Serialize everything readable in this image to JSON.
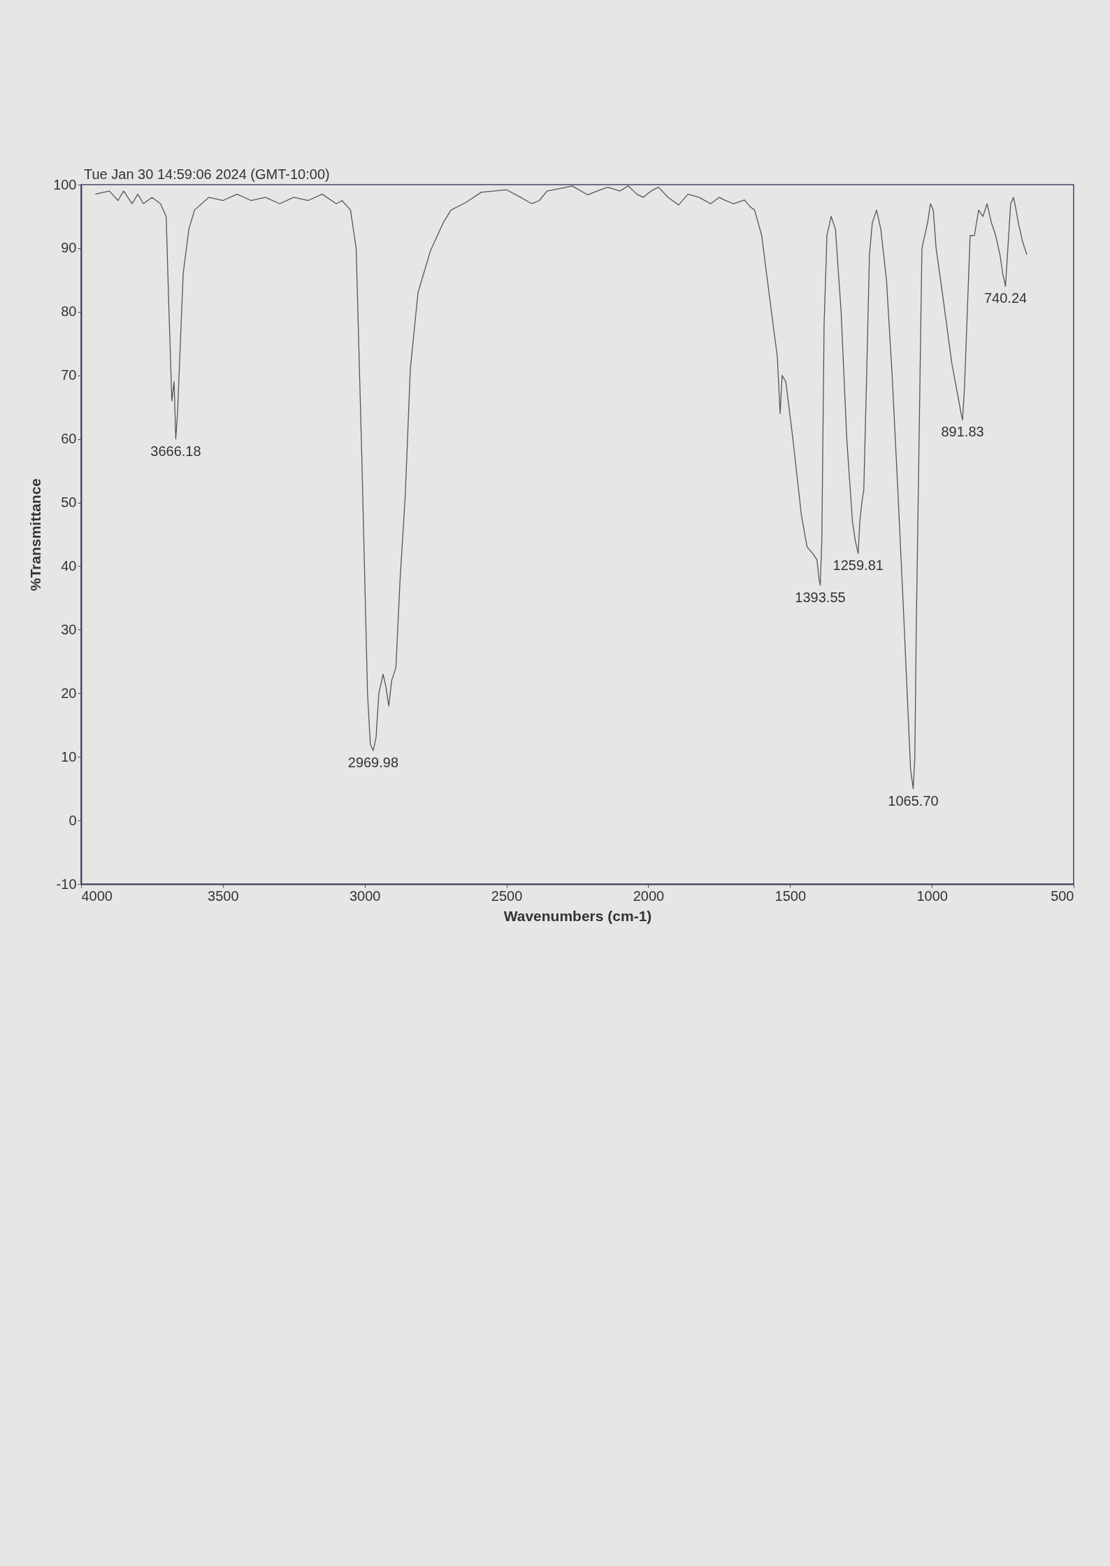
{
  "chart_data": {
    "type": "line",
    "xlabel": "Wavenumbers (cm-1)",
    "ylabel": "%Transmittance",
    "color": "#555555",
    "x": [
      3950,
      3900,
      3870,
      3850,
      3820,
      3800,
      3780,
      3750,
      3720,
      3700,
      3690,
      3680,
      3672,
      3666.18,
      3660,
      3650,
      3640,
      3620,
      3600,
      3550,
      3500,
      3450,
      3400,
      3350,
      3300,
      3250,
      3200,
      3150,
      3100,
      3080,
      3050,
      3030,
      3010,
      2990,
      2980,
      2969.98,
      2960,
      2950,
      2935,
      2925,
      2915,
      2905,
      2890,
      2875,
      2857,
      2839,
      2812,
      2768,
      2723,
      2696,
      2643,
      2589,
      2500,
      2450,
      2411,
      2384,
      2357,
      2300,
      2268,
      2214,
      2180,
      2143,
      2100,
      2071,
      2040,
      2018,
      1990,
      1964,
      1930,
      1893,
      1860,
      1821,
      1780,
      1750,
      1732,
      1700,
      1661,
      1640,
      1625,
      1600,
      1580,
      1560,
      1545,
      1535,
      1528,
      1515,
      1490,
      1460,
      1440,
      1420,
      1405,
      1398,
      1393.55,
      1388,
      1380,
      1370,
      1355,
      1340,
      1320,
      1300,
      1280,
      1270,
      1265,
      1259.81,
      1254,
      1247,
      1240,
      1230,
      1220,
      1210,
      1195,
      1180,
      1160,
      1140,
      1120,
      1100,
      1085,
      1075,
      1065.7,
      1060,
      1055,
      1045,
      1035,
      1025,
      1015,
      1005,
      995,
      985,
      960,
      930,
      905,
      897,
      891.83,
      885,
      875,
      865,
      850,
      835,
      820,
      805,
      790,
      775,
      760,
      750,
      740.24,
      732,
      722,
      712,
      705,
      695,
      680,
      665
    ],
    "values": [
      98.5,
      99,
      97.5,
      99,
      97,
      98.5,
      97,
      98,
      97,
      95,
      80,
      66,
      69,
      60,
      64,
      75,
      86,
      93,
      96,
      98,
      97.5,
      98.5,
      97.5,
      98,
      97,
      98,
      97.5,
      98.5,
      97,
      97.5,
      96,
      90,
      57,
      20,
      12,
      11,
      13,
      20,
      23,
      21,
      18,
      22,
      24,
      38,
      51,
      71,
      83,
      89.6,
      94,
      96,
      97.2,
      98.8,
      99.2,
      98,
      97,
      97.5,
      99,
      99.5,
      99.8,
      98.4,
      99,
      99.6,
      99,
      99.8,
      98.5,
      98,
      99,
      99.6,
      98,
      96.8,
      98.5,
      98,
      97,
      98,
      97.6,
      97,
      97.6,
      96.5,
      96,
      92,
      85,
      78,
      73,
      64,
      70,
      69,
      60,
      48,
      43,
      42,
      41,
      38,
      37,
      44,
      78,
      92,
      95,
      93,
      80,
      60,
      47,
      44,
      43,
      42,
      47,
      50,
      52,
      70,
      89,
      94,
      96,
      93,
      85,
      70,
      52,
      33,
      18,
      8,
      5,
      10,
      30,
      60,
      90,
      92,
      94,
      97,
      96,
      90,
      82,
      72,
      66,
      64,
      63,
      68,
      80,
      92,
      92,
      96,
      95,
      97,
      94,
      92,
      89,
      86,
      84,
      90,
      97,
      98,
      96.5,
      94,
      91,
      89
    ],
    "xlim": [
      4000,
      500
    ],
    "ylim": [
      -10,
      100
    ],
    "xticks": [
      4000,
      3500,
      3000,
      2500,
      2000,
      1500,
      1000,
      500
    ],
    "yticks": [
      -10,
      0,
      10,
      20,
      30,
      40,
      50,
      60,
      70,
      80,
      90,
      100
    ],
    "annotations": [
      "Tue Jan 30 14:59:06 2024 (GMT-10:00)",
      {
        "text": "3666.18",
        "x": 3666.18,
        "y": 60
      },
      {
        "text": "2969.98",
        "x": 2969.98,
        "y": 11
      },
      {
        "text": "1393.55",
        "x": 1393.55,
        "y": 37
      },
      {
        "text": "1259.81",
        "x": 1259.81,
        "y": 42
      },
      {
        "text": "1065.70",
        "x": 1065.7,
        "y": 5
      },
      {
        "text": "891.83",
        "x": 891.83,
        "y": 63
      },
      {
        "text": "740.24",
        "x": 740.24,
        "y": 84
      }
    ]
  }
}
